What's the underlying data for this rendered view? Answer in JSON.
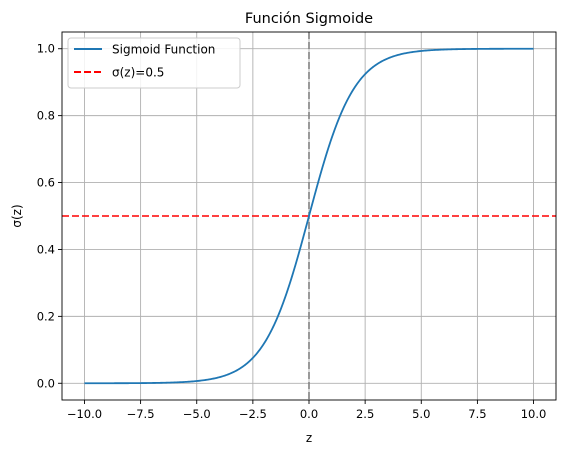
{
  "chart_data": {
    "type": "line",
    "title": "Función Sigmoide",
    "xlabel": "z",
    "ylabel": "σ(z)",
    "xlim": [
      -11.0,
      11.0
    ],
    "ylim": [
      -0.05,
      1.05
    ],
    "xticks": [
      -10.0,
      -7.5,
      -5.0,
      -2.5,
      0.0,
      2.5,
      5.0,
      7.5,
      10.0
    ],
    "xtick_labels": [
      "−10.0",
      "−7.5",
      "−5.0",
      "−2.5",
      "0.0",
      "2.5",
      "5.0",
      "7.5",
      "10.0"
    ],
    "yticks": [
      0.0,
      0.2,
      0.4,
      0.6,
      0.8,
      1.0
    ],
    "ytick_labels": [
      "0.0",
      "0.2",
      "0.4",
      "0.6",
      "0.8",
      "1.0"
    ],
    "grid": true,
    "legend_position": "upper-left",
    "series": [
      {
        "name": "Sigmoid Function",
        "color": "#1f77b4",
        "style": "solid",
        "function": "sigmoid",
        "x_range": [
          -10,
          10
        ],
        "x": [
          -10,
          -9,
          -8,
          -7,
          -6,
          -5,
          -4,
          -3,
          -2.5,
          -2,
          -1.5,
          -1,
          -0.5,
          0,
          0.5,
          1,
          1.5,
          2,
          2.5,
          3,
          4,
          5,
          6,
          7,
          8,
          9,
          10
        ],
        "y": [
          0.0,
          0.0001,
          0.0003,
          0.0009,
          0.0025,
          0.0067,
          0.018,
          0.0474,
          0.0759,
          0.1192,
          0.1824,
          0.2689,
          0.3775,
          0.5,
          0.6225,
          0.7311,
          0.8176,
          0.8808,
          0.9241,
          0.9526,
          0.982,
          0.9933,
          0.9975,
          0.9991,
          0.9997,
          0.9999,
          1.0
        ]
      }
    ],
    "reference_lines": [
      {
        "name": "σ(z)=0.5",
        "orientation": "horizontal",
        "value": 0.5,
        "color": "#ff0000",
        "style": "dashed",
        "in_legend": true
      },
      {
        "orientation": "vertical",
        "value": 0.0,
        "color": "#808080",
        "style": "dashed",
        "in_legend": false
      }
    ]
  }
}
